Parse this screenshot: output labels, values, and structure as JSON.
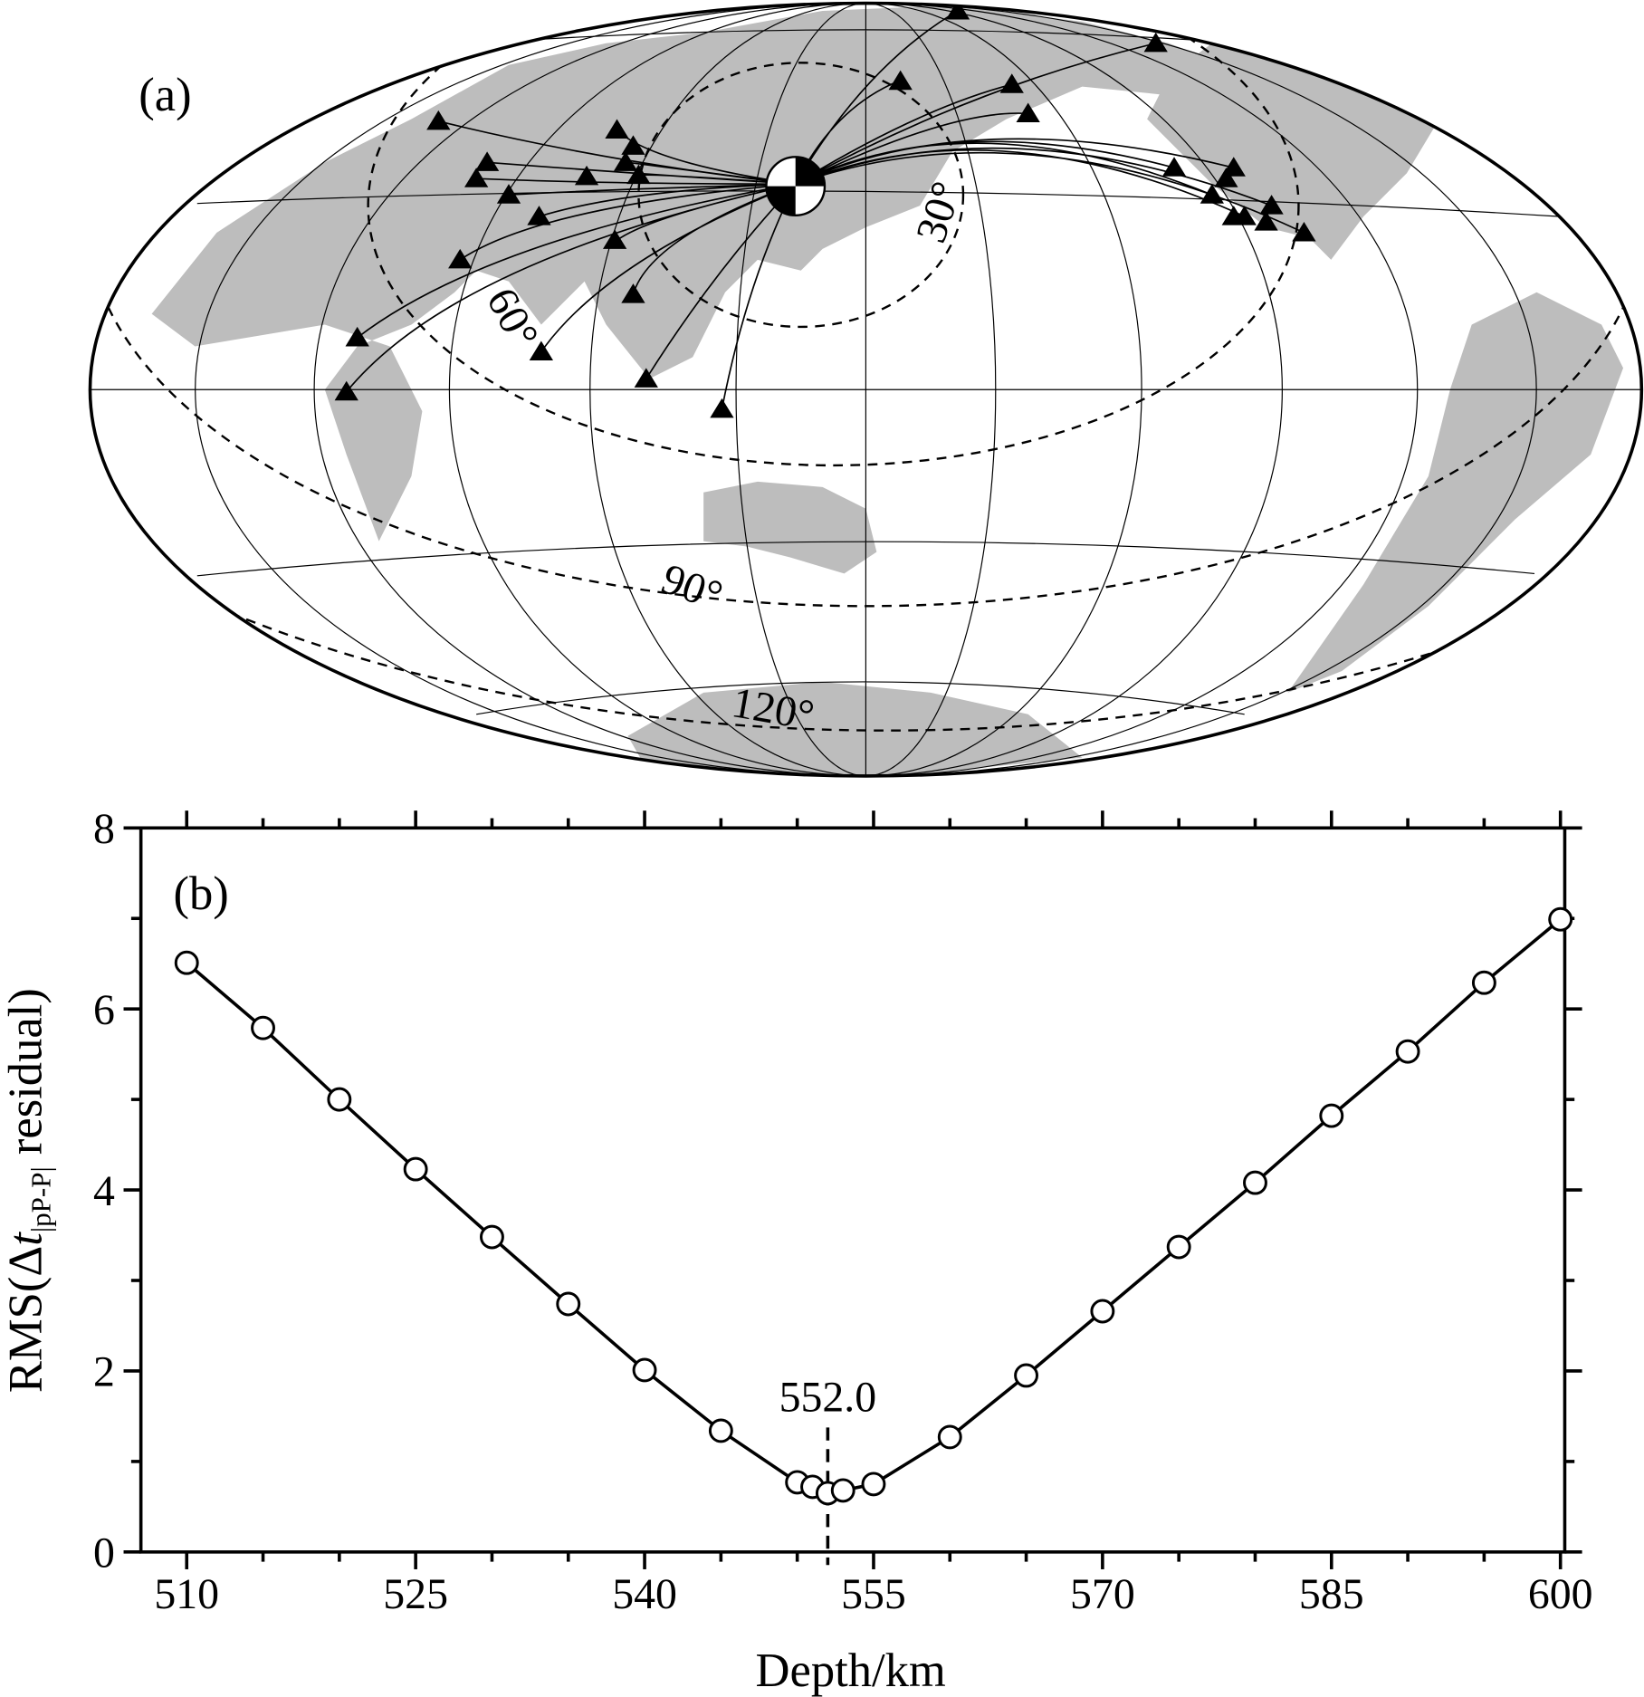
{
  "panel_a": {
    "label": "(a)",
    "contour_labels": [
      "30°",
      "60°",
      "90°",
      "120°"
    ]
  },
  "chart_data": {
    "type": "line",
    "panel_label": "(b)",
    "xlabel": "Depth/km",
    "ylabel": {
      "prefix": "RMS(Δ",
      "var": "t",
      "sub": "|pP-P|",
      "suffix": " residual)"
    },
    "x": [
      510,
      515,
      520,
      525,
      530,
      535,
      540,
      545,
      550,
      551,
      552,
      553,
      555,
      560,
      565,
      570,
      575,
      580,
      585,
      590,
      595,
      600
    ],
    "series": [
      {
        "color": "#000000",
        "values": [
          6.51,
          5.79,
          5.0,
          4.23,
          3.48,
          2.74,
          2.01,
          1.34,
          0.77,
          0.72,
          0.65,
          0.68,
          0.75,
          1.27,
          1.95,
          2.66,
          3.37,
          4.08,
          4.82,
          5.53,
          6.29,
          6.99
        ]
      }
    ],
    "xlim": [
      507,
      600
    ],
    "ylim": [
      0,
      8
    ],
    "xticks": [
      510,
      525,
      540,
      555,
      570,
      585,
      600
    ],
    "xminorticks": [
      515,
      520,
      530,
      535,
      545,
      550,
      560,
      565,
      575,
      580,
      590,
      595
    ],
    "yticks": [
      0,
      2,
      4,
      6,
      8
    ],
    "yminorticks": [
      1,
      3,
      5,
      7
    ],
    "annotation": {
      "text": "552.0",
      "x": 552
    }
  }
}
